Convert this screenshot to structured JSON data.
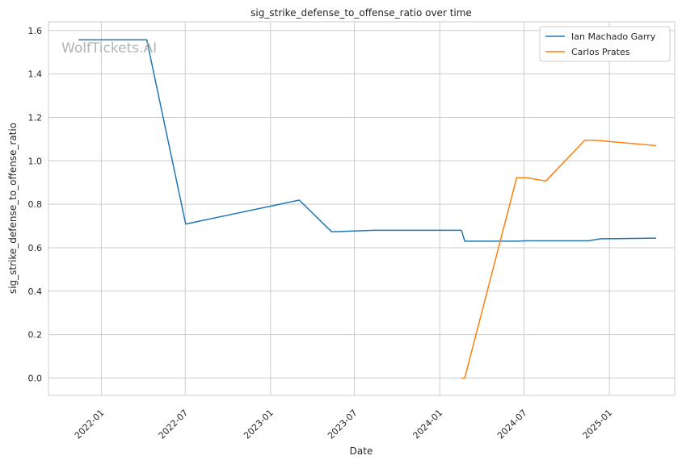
{
  "watermark": "WolfTickets.AI",
  "chart_data": {
    "type": "line",
    "title": "sig_strike_defense_to_offense_ratio over time",
    "xlabel": "Date",
    "ylabel": "sig_strike_defense_to_offense_ratio",
    "x_axis_type": "date",
    "xlim": [
      "2021-09-09",
      "2025-05-22"
    ],
    "ylim": [
      -0.08,
      1.64
    ],
    "x_ticks": [
      "2022-01",
      "2022-07",
      "2023-01",
      "2023-07",
      "2024-01",
      "2024-07",
      "2025-01"
    ],
    "x_tick_dates": [
      "2022-01-01",
      "2022-07-01",
      "2023-01-01",
      "2023-07-01",
      "2024-01-01",
      "2024-07-01",
      "2025-01-01"
    ],
    "y_ticks": [
      "0.0",
      "0.2",
      "0.4",
      "0.6",
      "0.8",
      "1.0",
      "1.2",
      "1.4",
      "1.6"
    ],
    "y_tick_values": [
      0.0,
      0.2,
      0.4,
      0.6,
      0.8,
      1.0,
      1.2,
      1.4,
      1.6
    ],
    "grid": true,
    "legend_position": "top-right",
    "series": [
      {
        "name": "Ian Machado Garry",
        "color": "#1f77b4",
        "points": [
          {
            "x": "2021-11-13",
            "y": 1.557
          },
          {
            "x": "2022-04-09",
            "y": 1.557
          },
          {
            "x": "2022-07-02",
            "y": 0.709
          },
          {
            "x": "2023-03-04",
            "y": 0.819
          },
          {
            "x": "2023-05-13",
            "y": 0.673
          },
          {
            "x": "2023-08-12",
            "y": 0.68
          },
          {
            "x": "2024-02-17",
            "y": 0.68
          },
          {
            "x": "2024-02-24",
            "y": 0.63
          },
          {
            "x": "2024-06-15",
            "y": 0.63
          },
          {
            "x": "2024-07-06",
            "y": 0.632
          },
          {
            "x": "2024-11-16",
            "y": 0.632
          },
          {
            "x": "2024-12-14",
            "y": 0.641
          },
          {
            "x": "2025-04-12",
            "y": 0.644
          }
        ]
      },
      {
        "name": "Carlos Prates",
        "color": "#ff7f0e",
        "points": [
          {
            "x": "2024-02-17",
            "y": 0.0
          },
          {
            "x": "2024-02-24",
            "y": 0.0
          },
          {
            "x": "2024-06-15",
            "y": 0.922
          },
          {
            "x": "2024-07-06",
            "y": 0.922
          },
          {
            "x": "2024-08-17",
            "y": 0.907
          },
          {
            "x": "2024-11-09",
            "y": 1.095
          },
          {
            "x": "2024-11-30",
            "y": 1.095
          },
          {
            "x": "2025-04-12",
            "y": 1.07
          }
        ]
      }
    ]
  }
}
